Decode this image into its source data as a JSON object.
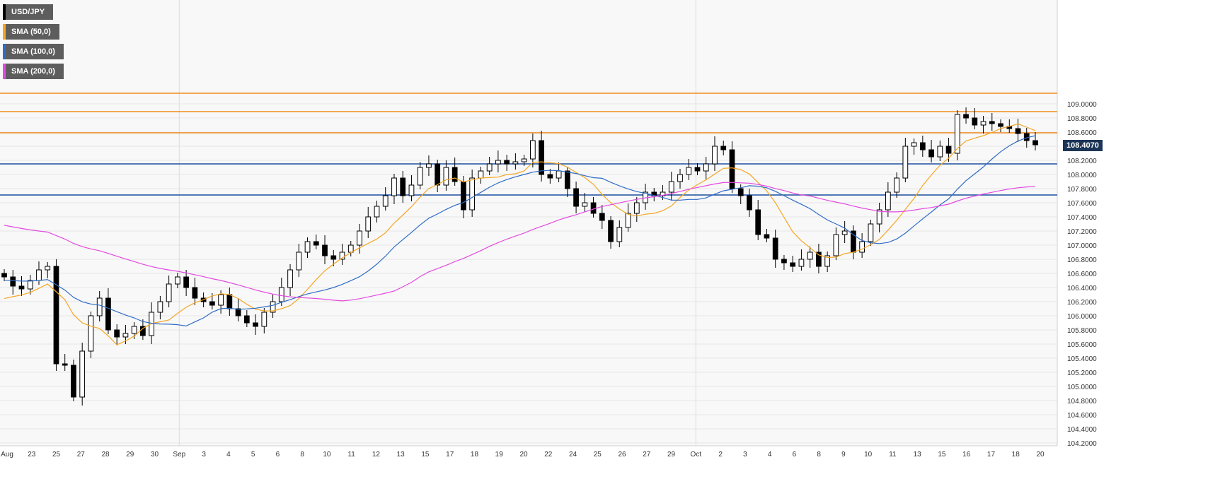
{
  "legend": [
    {
      "label": "USD/JPY",
      "color": "#000000"
    },
    {
      "label": "SMA (50,0)",
      "color": "#f5a623"
    },
    {
      "label": "SMA (100,0)",
      "color": "#2f6cc6"
    },
    {
      "label": "SMA (200,0)",
      "color": "#e34ae0"
    }
  ],
  "current_price": "108.4070",
  "chart_data": {
    "type": "candlestick",
    "symbol": "USD/JPY",
    "grid": true,
    "y_range": [
      104.2,
      109.2
    ],
    "y_ticks": [
      "109.0000",
      "108.8000",
      "108.6000",
      "108.4000",
      "108.2000",
      "108.0000",
      "107.8000",
      "107.6000",
      "107.4000",
      "107.2000",
      "107.0000",
      "106.8000",
      "106.6000",
      "106.4000",
      "106.2000",
      "106.0000",
      "105.8000",
      "105.6000",
      "105.4000",
      "105.2000",
      "105.0000",
      "104.8000",
      "104.6000",
      "104.4000",
      "104.2000"
    ],
    "x_ticks": [
      "Aug",
      "23",
      "25",
      "27",
      "28",
      "29",
      "30",
      "Sep",
      "3",
      "4",
      "5",
      "6",
      "8",
      "10",
      "11",
      "12",
      "13",
      "15",
      "17",
      "18",
      "19",
      "20",
      "22",
      "24",
      "25",
      "26",
      "27",
      "29",
      "Oct",
      "2",
      "3",
      "4",
      "6",
      "8",
      "9",
      "10",
      "11",
      "13",
      "15",
      "16",
      "17",
      "18",
      "20"
    ],
    "horizontal_levels": [
      {
        "value": 109.15,
        "color": "#f08a1c"
      },
      {
        "value": 108.89,
        "color": "#f08a1c"
      },
      {
        "value": 108.59,
        "color": "#f08a1c"
      },
      {
        "value": 108.15,
        "color": "#1c4fa0"
      },
      {
        "value": 107.71,
        "color": "#1c4fa0"
      }
    ],
    "candles_close": [
      106.55,
      106.42,
      106.38,
      106.5,
      106.65,
      106.7,
      105.32,
      105.3,
      104.85,
      105.5,
      106.0,
      106.25,
      105.8,
      105.7,
      105.75,
      105.85,
      105.72,
      106.05,
      106.2,
      106.45,
      106.55,
      106.4,
      106.25,
      106.2,
      106.15,
      106.3,
      106.1,
      106.0,
      105.9,
      105.85,
      106.05,
      106.2,
      106.4,
      106.65,
      106.9,
      107.05,
      107.0,
      106.85,
      106.8,
      106.9,
      107.0,
      107.2,
      107.4,
      107.55,
      107.7,
      107.95,
      107.7,
      107.85,
      108.1,
      108.15,
      107.85,
      108.1,
      107.9,
      107.5,
      107.95,
      108.05,
      108.15,
      108.2,
      108.15,
      108.18,
      108.22,
      108.48,
      108.0,
      107.95,
      108.05,
      107.8,
      107.55,
      107.6,
      107.45,
      107.35,
      107.05,
      107.25,
      107.45,
      107.6,
      107.75,
      107.7,
      107.75,
      107.9,
      108.0,
      108.1,
      108.05,
      108.15,
      108.4,
      108.35,
      107.8,
      107.7,
      107.5,
      107.15,
      107.1,
      106.8,
      106.75,
      106.7,
      106.8,
      106.9,
      106.7,
      106.85,
      107.15,
      107.2,
      106.9,
      107.05,
      107.3,
      107.5,
      107.75,
      107.95,
      108.4,
      108.45,
      108.35,
      108.25,
      108.4,
      108.3,
      108.85,
      108.8,
      108.7,
      108.75,
      108.72,
      108.68,
      108.65,
      108.58,
      108.48,
      108.42
    ]
  }
}
